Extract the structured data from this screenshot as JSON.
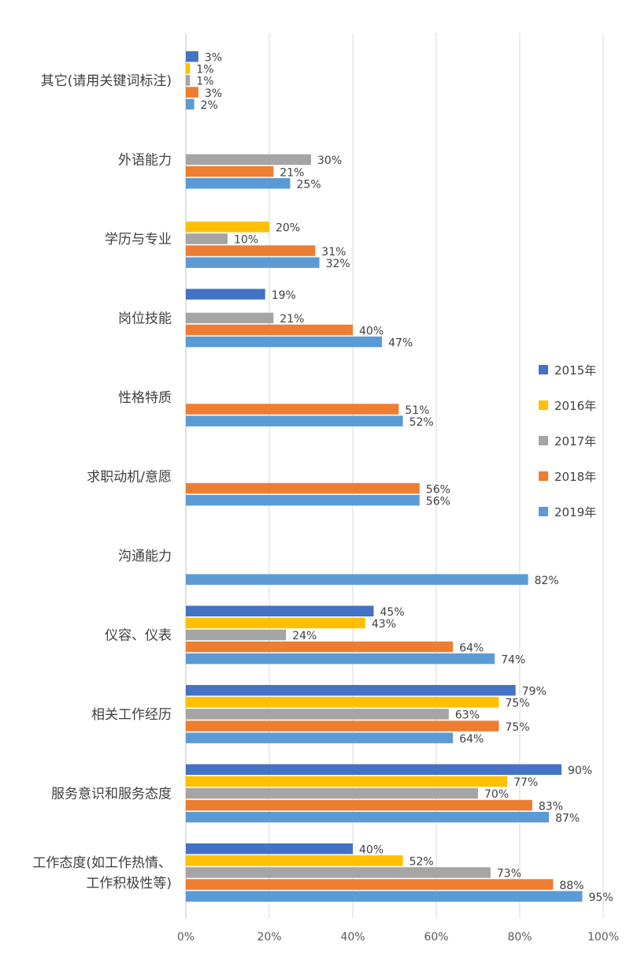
{
  "chart_data": {
    "type": "bar",
    "orientation": "horizontal",
    "categories": [
      "其它(请用关键词标注)",
      "外语能力",
      "学历与专业",
      "岗位技能",
      "性格特质",
      "求职动机/意愿",
      "沟通能力",
      "仪容、仪表",
      "相关工作经历",
      "服务意识和服务态度",
      "工作态度(如工作热情、\n工作积极性等)"
    ],
    "series": [
      {
        "name": "2015年",
        "color": "#4472c4",
        "values": [
          3,
          null,
          null,
          19,
          null,
          null,
          null,
          45,
          79,
          90,
          40
        ]
      },
      {
        "name": "2016年",
        "color": "#ffc000",
        "values": [
          1,
          null,
          20,
          null,
          null,
          null,
          null,
          43,
          75,
          77,
          52
        ]
      },
      {
        "name": "2017年",
        "color": "#a5a5a5",
        "values": [
          1,
          30,
          10,
          21,
          null,
          null,
          null,
          24,
          63,
          70,
          73
        ]
      },
      {
        "name": "2018年",
        "color": "#ed7d31",
        "values": [
          3,
          21,
          31,
          40,
          51,
          56,
          null,
          64,
          75,
          83,
          88
        ]
      },
      {
        "name": "2019年",
        "color": "#5b9bd5",
        "values": [
          2,
          25,
          32,
          47,
          52,
          56,
          82,
          74,
          64,
          87,
          95
        ]
      }
    ],
    "xlim": [
      0,
      100
    ],
    "x_ticks": [
      "0%",
      "20%",
      "40%",
      "60%",
      "80%",
      "100%"
    ],
    "value_suffix": "%",
    "grid": true,
    "legend_position": "right"
  }
}
